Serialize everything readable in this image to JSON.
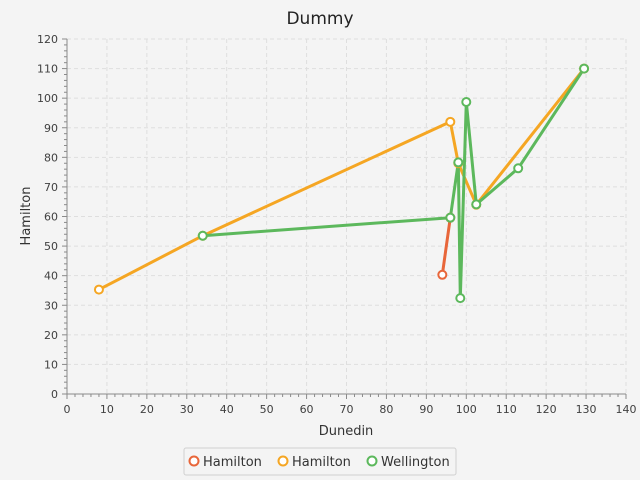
{
  "chart_data": {
    "type": "line",
    "title": "Dummy",
    "xlabel": "Dunedin",
    "ylabel": "Hamilton",
    "xlim": [
      0,
      140
    ],
    "ylim": [
      0,
      120
    ],
    "x_major_step": 10,
    "y_major_step": 10,
    "grid": true,
    "legend_position": "bottom",
    "series": [
      {
        "name": "Hamilton",
        "color": "#e8663a",
        "x": [
          94,
          96
        ],
        "y": [
          40.3,
          59.6
        ]
      },
      {
        "name": "Hamilton",
        "color": "#f5a623",
        "x": [
          8,
          34,
          96,
          98,
          102.5,
          129.5
        ],
        "y": [
          35.3,
          53.5,
          92,
          78,
          64,
          110
        ]
      },
      {
        "name": "Wellington",
        "color": "#5cb85c",
        "x": [
          34,
          96,
          98,
          98.5,
          100,
          102.5,
          113,
          129.5
        ],
        "y": [
          53.5,
          59.6,
          78.3,
          32.4,
          98.7,
          64.1,
          76.3,
          110
        ]
      }
    ]
  }
}
